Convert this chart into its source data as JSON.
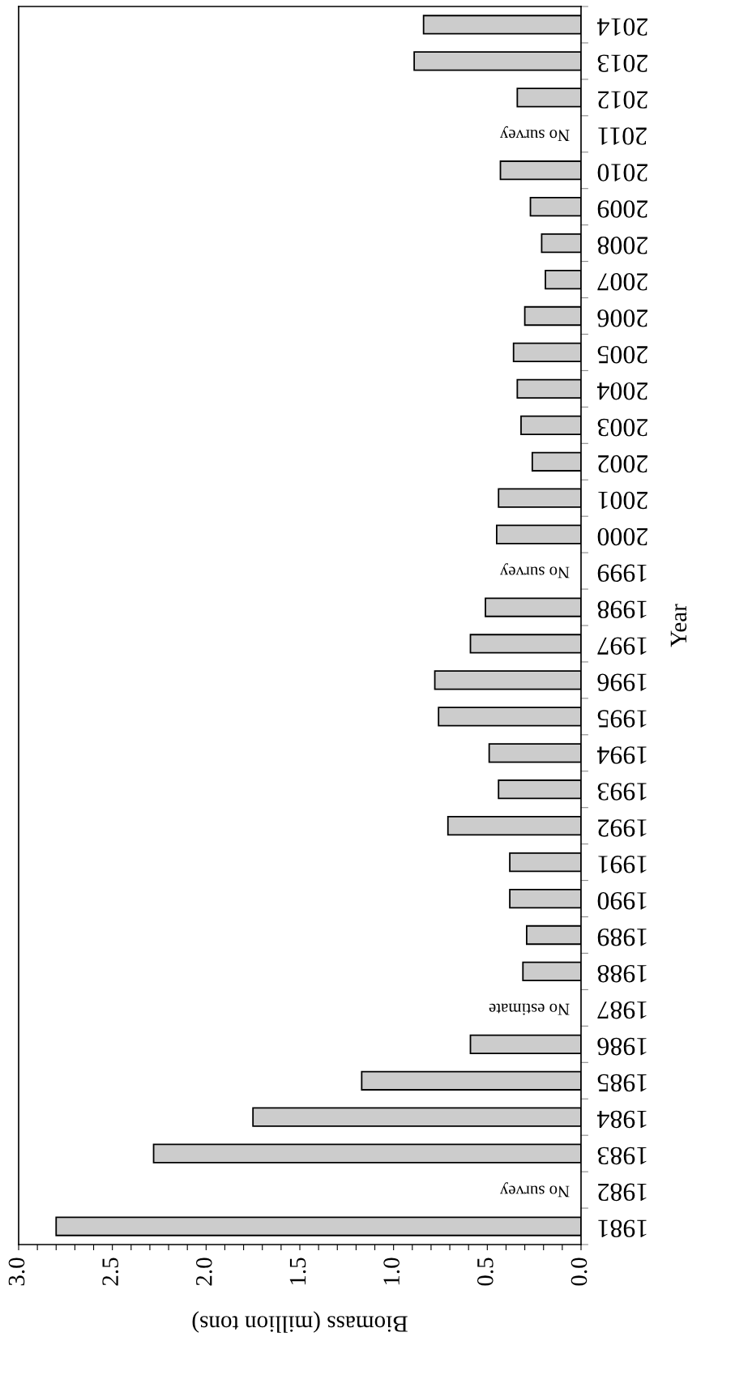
{
  "chart_data": {
    "type": "bar",
    "orientation": "horizontal",
    "xlabel": "Biomass (million tons)",
    "ylabel": "Year",
    "categories": [
      "2014",
      "2013",
      "2012",
      "2011",
      "2010",
      "2009",
      "2008",
      "2007",
      "2006",
      "2005",
      "2004",
      "2003",
      "2002",
      "2001",
      "2000",
      "1999",
      "1998",
      "1997",
      "1996",
      "1995",
      "1994",
      "1993",
      "1992",
      "1991",
      "1990",
      "1989",
      "1988",
      "1987",
      "1986",
      "1985",
      "1984",
      "1983",
      "1982",
      "1981"
    ],
    "values": [
      0.84,
      0.89,
      0.34,
      null,
      0.43,
      0.27,
      0.21,
      0.19,
      0.3,
      0.36,
      0.34,
      0.32,
      0.26,
      0.44,
      0.45,
      null,
      0.51,
      0.59,
      0.78,
      0.76,
      0.49,
      0.44,
      0.71,
      0.38,
      0.38,
      0.29,
      0.31,
      null,
      0.59,
      1.17,
      1.75,
      2.28,
      null,
      2.8
    ],
    "color": "#cccccc",
    "xlim": [
      3.0,
      0.0
    ],
    "xticks": [
      {
        "value": 0.0,
        "label": "0.0"
      },
      {
        "value": 0.1,
        "label": null
      },
      {
        "value": 0.2,
        "label": null
      },
      {
        "value": 0.3,
        "label": null
      },
      {
        "value": 0.4,
        "label": null
      },
      0.5,
      {
        "value": 0.6,
        "label": null
      },
      {
        "value": 0.7,
        "label": null
      },
      {
        "value": 0.8,
        "label": null
      },
      {
        "value": 0.9,
        "label": null
      },
      {
        "value": 1.0,
        "label": "1.0"
      },
      {
        "value": 1.1,
        "label": null
      },
      {
        "value": 1.2,
        "label": null
      },
      {
        "value": 1.3,
        "label": null
      },
      {
        "value": 1.4,
        "label": null
      },
      1.5,
      {
        "value": 1.6,
        "label": null
      },
      {
        "value": 1.7,
        "label": null
      },
      {
        "value": 1.8,
        "label": null
      },
      {
        "value": 1.9,
        "label": null
      },
      {
        "value": 2.0,
        "label": "2.0"
      },
      {
        "value": 2.1,
        "label": null
      },
      {
        "value": 2.2,
        "label": null
      },
      {
        "value": 2.3,
        "label": null
      },
      {
        "value": 2.4,
        "label": null
      },
      2.5,
      {
        "value": 2.6,
        "label": null
      },
      {
        "value": 2.7,
        "label": null
      },
      {
        "value": 2.8,
        "label": null
      },
      {
        "value": 2.9,
        "label": null
      },
      {
        "value": 3.0,
        "label": "3.0"
      }
    ],
    "annotations": [
      "No survey",
      "No survey",
      "No estimate",
      "No survey"
    ],
    "grid": false
  }
}
